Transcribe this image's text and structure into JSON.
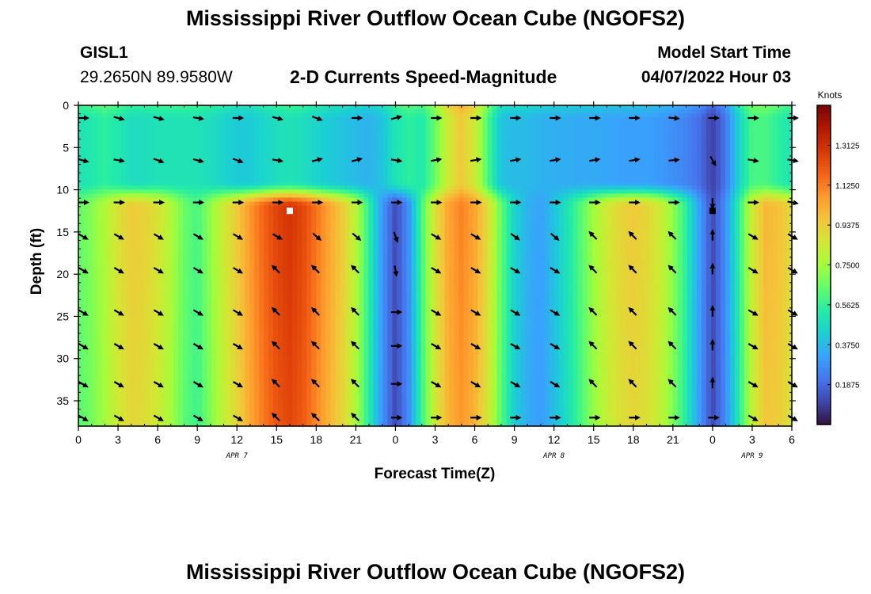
{
  "page": {
    "title": "Mississippi River Outflow Ocean Cube (NGOFS2)",
    "title_bottom": "Mississippi River Outflow Ocean Cube (NGOFS2)",
    "station": "GISL1",
    "coordinates": "29.2650N  89.9580W",
    "subtitle": "2-D Currents Speed-Magnitude",
    "model_start_label": "Model Start Time",
    "model_start_value": "04/07/2022 Hour 03"
  },
  "chart_data": {
    "type": "heatmap",
    "title": "2-D Currents Speed-Magnitude",
    "xlabel": "Forecast Time(Z)",
    "ylabel": "Depth (ft)",
    "x_tick_labels": [
      "0",
      "3",
      "6",
      "9",
      "12",
      "15",
      "18",
      "21",
      "0",
      "3",
      "6",
      "9",
      "12",
      "15",
      "18",
      "21",
      "0",
      "3",
      "6"
    ],
    "x_range_hours": [
      0,
      54
    ],
    "date_labels": [
      {
        "label": "APR 7",
        "hour": 12
      },
      {
        "label": "APR 8",
        "hour": 36
      },
      {
        "label": "APR 9",
        "hour": 51
      }
    ],
    "y_ticks": [
      0,
      5,
      10,
      15,
      20,
      25,
      30,
      35
    ],
    "y_range": [
      0,
      38
    ],
    "y_inverted": true,
    "colorbar": {
      "unit": "Knots",
      "range": [
        0,
        1.5
      ],
      "tick_labels": [
        "0.1875",
        "0.3750",
        "0.5625",
        "0.7500",
        "0.9375",
        "1.1250",
        "1.3125"
      ],
      "colormap": [
        "#30123b",
        "#4145ab",
        "#4675ed",
        "#39a2fc",
        "#1bcfd4",
        "#24eca6",
        "#61fc6c",
        "#a4fc3b",
        "#d1e834",
        "#f3c63a",
        "#fe9b2d",
        "#f36315",
        "#d93806",
        "#b11901",
        "#7a0403"
      ]
    },
    "series": [
      {
        "hour": 0,
        "surface": 0.5,
        "deep": 0.65
      },
      {
        "hour": 1,
        "surface": 0.52,
        "deep": 0.7
      },
      {
        "hour": 2,
        "surface": 0.55,
        "deep": 0.78
      },
      {
        "hour": 3,
        "surface": 0.52,
        "deep": 0.88
      },
      {
        "hour": 4,
        "surface": 0.48,
        "deep": 0.95
      },
      {
        "hour": 5,
        "surface": 0.48,
        "deep": 0.93
      },
      {
        "hour": 6,
        "surface": 0.5,
        "deep": 0.88
      },
      {
        "hour": 7,
        "surface": 0.5,
        "deep": 0.78
      },
      {
        "hour": 8,
        "surface": 0.5,
        "deep": 0.66
      },
      {
        "hour": 9,
        "surface": 0.5,
        "deep": 0.6
      },
      {
        "hour": 10,
        "surface": 0.48,
        "deep": 0.72
      },
      {
        "hour": 11,
        "surface": 0.45,
        "deep": 0.85
      },
      {
        "hour": 12,
        "surface": 0.42,
        "deep": 0.95
      },
      {
        "hour": 13,
        "surface": 0.42,
        "deep": 1.08
      },
      {
        "hour": 14,
        "surface": 0.45,
        "deep": 1.18
      },
      {
        "hour": 15,
        "surface": 0.48,
        "deep": 1.26
      },
      {
        "hour": 16,
        "surface": 0.5,
        "deep": 1.3
      },
      {
        "hour": 17,
        "surface": 0.48,
        "deep": 1.25
      },
      {
        "hour": 18,
        "surface": 0.45,
        "deep": 1.15
      },
      {
        "hour": 19,
        "surface": 0.42,
        "deep": 1.05
      },
      {
        "hour": 20,
        "surface": 0.4,
        "deep": 0.95
      },
      {
        "hour": 21,
        "surface": 0.38,
        "deep": 0.8
      },
      {
        "hour": 22,
        "surface": 0.36,
        "deep": 0.55
      },
      {
        "hour": 23,
        "surface": 0.4,
        "deep": 0.3
      },
      {
        "hour": 24,
        "surface": 0.5,
        "deep": 0.12
      },
      {
        "hour": 25,
        "surface": 0.55,
        "deep": 0.28
      },
      {
        "hour": 26,
        "surface": 0.52,
        "deep": 0.6
      },
      {
        "hour": 27,
        "surface": 0.65,
        "deep": 0.88
      },
      {
        "hour": 28,
        "surface": 0.85,
        "deep": 1.05
      },
      {
        "hour": 29,
        "surface": 0.95,
        "deep": 1.12
      },
      {
        "hour": 30,
        "surface": 0.85,
        "deep": 1.05
      },
      {
        "hour": 31,
        "surface": 0.6,
        "deep": 0.9
      },
      {
        "hour": 32,
        "surface": 0.4,
        "deep": 0.65
      },
      {
        "hour": 33,
        "surface": 0.38,
        "deep": 0.45
      },
      {
        "hour": 34,
        "surface": 0.38,
        "deep": 0.36
      },
      {
        "hour": 35,
        "surface": 0.36,
        "deep": 0.32
      },
      {
        "hour": 36,
        "surface": 0.35,
        "deep": 0.4
      },
      {
        "hour": 37,
        "surface": 0.35,
        "deep": 0.5
      },
      {
        "hour": 38,
        "surface": 0.34,
        "deep": 0.62
      },
      {
        "hour": 39,
        "surface": 0.34,
        "deep": 0.75
      },
      {
        "hour": 40,
        "surface": 0.33,
        "deep": 0.85
      },
      {
        "hour": 41,
        "surface": 0.32,
        "deep": 0.92
      },
      {
        "hour": 42,
        "surface": 0.32,
        "deep": 0.95
      },
      {
        "hour": 43,
        "surface": 0.32,
        "deep": 0.92
      },
      {
        "hour": 44,
        "surface": 0.3,
        "deep": 0.85
      },
      {
        "hour": 45,
        "surface": 0.28,
        "deep": 0.72
      },
      {
        "hour": 46,
        "surface": 0.25,
        "deep": 0.55
      },
      {
        "hour": 47,
        "surface": 0.2,
        "deep": 0.32
      },
      {
        "hour": 48,
        "surface": 0.1,
        "deep": 0.12
      },
      {
        "hour": 49,
        "surface": 0.22,
        "deep": 0.28
      },
      {
        "hour": 50,
        "surface": 0.45,
        "deep": 0.55
      },
      {
        "hour": 51,
        "surface": 0.6,
        "deep": 0.85
      },
      {
        "hour": 52,
        "surface": 0.6,
        "deep": 1.0
      },
      {
        "hour": 53,
        "surface": 0.55,
        "deep": 0.98
      },
      {
        "hour": 54,
        "surface": 0.5,
        "deep": 0.9
      }
    ],
    "markers": [
      {
        "hour": 16,
        "depth": 12.5,
        "color": "#ffffff"
      },
      {
        "hour": 48,
        "depth": 12.5,
        "color": "#000000"
      }
    ],
    "vector_depths": [
      1.5,
      6.5,
      11.5,
      15.5,
      19.5,
      24.5,
      28.5,
      33,
      37
    ],
    "vector_angles": [
      [
        0,
        15,
        15,
        10,
        0,
        15,
        20,
        0,
        -15,
        0,
        0,
        0,
        0,
        0,
        0,
        5,
        0,
        0,
        0
      ],
      [
        15,
        10,
        20,
        15,
        20,
        10,
        -15,
        -15,
        10,
        -10,
        -10,
        -10,
        -10,
        -10,
        -10,
        -5,
        60,
        10,
        10
      ],
      [
        0,
        0,
        0,
        0,
        0,
        0,
        0,
        0,
        0,
        0,
        0,
        0,
        0,
        0,
        0,
        0,
        90,
        0,
        10
      ],
      [
        30,
        30,
        30,
        30,
        30,
        30,
        40,
        40,
        70,
        30,
        30,
        35,
        40,
        -135,
        -135,
        -135,
        -90,
        30,
        30
      ],
      [
        30,
        30,
        30,
        30,
        30,
        -135,
        -135,
        -135,
        80,
        30,
        30,
        30,
        30,
        -135,
        -135,
        -135,
        -90,
        30,
        30
      ],
      [
        30,
        30,
        30,
        30,
        30,
        -135,
        -135,
        -135,
        0,
        30,
        30,
        30,
        30,
        -135,
        -135,
        -135,
        -90,
        30,
        30
      ],
      [
        30,
        30,
        30,
        30,
        30,
        -135,
        -135,
        -135,
        0,
        30,
        30,
        30,
        30,
        -135,
        -135,
        -135,
        -90,
        30,
        30
      ],
      [
        30,
        30,
        30,
        30,
        30,
        -135,
        -135,
        -135,
        0,
        30,
        30,
        30,
        30,
        -135,
        -135,
        -135,
        -90,
        30,
        30
      ],
      [
        30,
        30,
        30,
        30,
        30,
        -135,
        -135,
        -135,
        0,
        0,
        0,
        0,
        0,
        0,
        0,
        0,
        0,
        30,
        30
      ]
    ]
  }
}
